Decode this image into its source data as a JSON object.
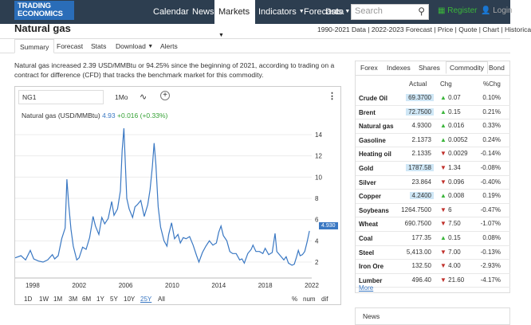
{
  "header": {
    "logo_line1": "TRADING",
    "logo_line2": "ECONOMICS",
    "nav": [
      "Calendar",
      "News",
      "Markets",
      "Indicators",
      "Forecasts",
      "Data"
    ],
    "search_placeholder": "Search",
    "register": "Register",
    "login": "Login"
  },
  "page": {
    "title": "Natural gas",
    "breadcrumbs": "1990-2021 Data | 2022-2023 Forecast | Price | Quote | Chart | Historica",
    "tabs": [
      "Summary",
      "Forecast",
      "Stats",
      "Download",
      "Alerts"
    ],
    "description": "Natural gas increased 2.39 USD/MMBtu or 94.25% since the beginning of 2021, according to trading on a contract for difference (CFD) that tracks the benchmark market for this commodity."
  },
  "chart_controls": {
    "symbol": "NG1",
    "range_selected": "1Mo",
    "series_label": "Natural gas (USD/MMBtu)",
    "series_value": "4.93",
    "series_change": "+0.016 (+0.33%)",
    "last_badge": "4.930",
    "ranges": [
      "1D",
      "1W",
      "1M",
      "3M",
      "6M",
      "1Y",
      "5Y",
      "10Y",
      "25Y",
      "All"
    ],
    "selected_range": "25Y",
    "right_options": [
      "%",
      "num",
      "dif"
    ]
  },
  "chart_data": {
    "type": "line",
    "series_name": "Natural gas (USD/MMBtu)",
    "x_tick_labels": [
      "1998",
      "2002",
      "2006",
      "2010",
      "2014",
      "2018",
      "2022"
    ],
    "y_tick_labels": [
      "2",
      "4",
      "6",
      "8",
      "10",
      "12",
      "14"
    ],
    "ylim": [
      0.5,
      15.5
    ],
    "xlim": [
      1996.5,
      2022
    ],
    "points": [
      [
        1996.5,
        2.4
      ],
      [
        1997,
        2.6
      ],
      [
        1997.4,
        2.2
      ],
      [
        1997.8,
        3.1
      ],
      [
        1998.1,
        2.3
      ],
      [
        1998.5,
        2.1
      ],
      [
        1998.9,
        2.0
      ],
      [
        1999.3,
        2.2
      ],
      [
        1999.7,
        2.7
      ],
      [
        1999.9,
        2.3
      ],
      [
        2000.2,
        2.6
      ],
      [
        2000.5,
        4.2
      ],
      [
        2000.8,
        5.2
      ],
      [
        2000.95,
        9.8
      ],
      [
        2001.1,
        7.5
      ],
      [
        2001.3,
        5.1
      ],
      [
        2001.5,
        3.5
      ],
      [
        2001.8,
        2.2
      ],
      [
        2002.0,
        2.4
      ],
      [
        2002.3,
        3.4
      ],
      [
        2002.6,
        3.2
      ],
      [
        2002.9,
        4.3
      ],
      [
        2003.1,
        5.6
      ],
      [
        2003.2,
        6.3
      ],
      [
        2003.4,
        5.4
      ],
      [
        2003.7,
        4.6
      ],
      [
        2003.95,
        6.2
      ],
      [
        2004.2,
        5.6
      ],
      [
        2004.5,
        6.1
      ],
      [
        2004.8,
        7.7
      ],
      [
        2005.0,
        6.4
      ],
      [
        2005.3,
        7.0
      ],
      [
        2005.55,
        8.7
      ],
      [
        2005.7,
        12.5
      ],
      [
        2005.85,
        14.6
      ],
      [
        2005.95,
        11.8
      ],
      [
        2006.1,
        8.0
      ],
      [
        2006.3,
        7.0
      ],
      [
        2006.6,
        6.2
      ],
      [
        2006.8,
        7.2
      ],
      [
        2007.0,
        7.4
      ],
      [
        2007.3,
        7.8
      ],
      [
        2007.6,
        6.3
      ],
      [
        2007.9,
        7.4
      ],
      [
        2008.1,
        8.8
      ],
      [
        2008.3,
        11.0
      ],
      [
        2008.45,
        13.2
      ],
      [
        2008.6,
        11.2
      ],
      [
        2008.8,
        7.2
      ],
      [
        2009.0,
        5.3
      ],
      [
        2009.3,
        4.0
      ],
      [
        2009.55,
        3.5
      ],
      [
        2009.7,
        4.6
      ],
      [
        2009.95,
        5.7
      ],
      [
        2010.2,
        4.2
      ],
      [
        2010.5,
        4.6
      ],
      [
        2010.7,
        3.8
      ],
      [
        2010.95,
        4.3
      ],
      [
        2011.2,
        4.2
      ],
      [
        2011.5,
        4.4
      ],
      [
        2011.8,
        3.6
      ],
      [
        2012.1,
        2.6
      ],
      [
        2012.3,
        2.0
      ],
      [
        2012.6,
        2.9
      ],
      [
        2012.9,
        3.5
      ],
      [
        2013.2,
        4.0
      ],
      [
        2013.5,
        3.6
      ],
      [
        2013.8,
        3.8
      ],
      [
        2014.0,
        4.8
      ],
      [
        2014.2,
        5.4
      ],
      [
        2014.4,
        4.5
      ],
      [
        2014.7,
        4.0
      ],
      [
        2014.95,
        3.0
      ],
      [
        2015.2,
        2.8
      ],
      [
        2015.5,
        2.8
      ],
      [
        2015.8,
        2.2
      ],
      [
        2016.0,
        2.3
      ],
      [
        2016.2,
        1.9
      ],
      [
        2016.5,
        2.8
      ],
      [
        2016.8,
        3.2
      ],
      [
        2016.95,
        3.6
      ],
      [
        2017.2,
        3.0
      ],
      [
        2017.5,
        3.0
      ],
      [
        2017.8,
        2.8
      ],
      [
        2018.0,
        3.3
      ],
      [
        2018.3,
        2.7
      ],
      [
        2018.6,
        2.9
      ],
      [
        2018.85,
        4.7
      ],
      [
        2019.0,
        3.0
      ],
      [
        2019.3,
        2.6
      ],
      [
        2019.6,
        2.2
      ],
      [
        2019.8,
        2.5
      ],
      [
        2020.0,
        1.9
      ],
      [
        2020.3,
        1.7
      ],
      [
        2020.5,
        1.8
      ],
      [
        2020.7,
        2.5
      ],
      [
        2020.85,
        3.1
      ],
      [
        2021.0,
        2.6
      ],
      [
        2021.2,
        2.7
      ],
      [
        2021.4,
        3.0
      ],
      [
        2021.6,
        3.9
      ],
      [
        2021.8,
        4.93
      ]
    ]
  },
  "market_panel": {
    "tabs": [
      "Forex",
      "Indexes",
      "Shares",
      "Commodity",
      "Bond"
    ],
    "active_tab": "Commodity",
    "col_actual": "Actual",
    "col_chg": "Chg",
    "col_pchg": "%Chg",
    "rows": [
      {
        "name": "Crude Oil",
        "actual": "69.3700",
        "chg": "0.07",
        "pchg": "0.10%",
        "dir": "up",
        "hl": true
      },
      {
        "name": "Brent",
        "actual": "72.7500",
        "chg": "0.15",
        "pchg": "0.21%",
        "dir": "up",
        "hl": true
      },
      {
        "name": "Natural gas",
        "actual": "4.9300",
        "chg": "0.016",
        "pchg": "0.33%",
        "dir": "up",
        "hl": false
      },
      {
        "name": "Gasoline",
        "actual": "2.1373",
        "chg": "0.0052",
        "pchg": "0.24%",
        "dir": "up",
        "hl": false
      },
      {
        "name": "Heating oil",
        "actual": "2.1335",
        "chg": "0.0029",
        "pchg": "-0.14%",
        "dir": "down",
        "hl": false
      },
      {
        "name": "Gold",
        "actual": "1787.58",
        "chg": "1.34",
        "pchg": "-0.08%",
        "dir": "down",
        "hl": true
      },
      {
        "name": "Silver",
        "actual": "23.864",
        "chg": "0.096",
        "pchg": "-0.40%",
        "dir": "down",
        "hl": false
      },
      {
        "name": "Copper",
        "actual": "4.2400",
        "chg": "0.008",
        "pchg": "0.19%",
        "dir": "up",
        "hl": true
      },
      {
        "name": "Soybeans",
        "actual": "1264.7500",
        "chg": "6",
        "pchg": "-0.47%",
        "dir": "down",
        "hl": false
      },
      {
        "name": "Wheat",
        "actual": "690.7500",
        "chg": "7.50",
        "pchg": "-1.07%",
        "dir": "down",
        "hl": false
      },
      {
        "name": "Coal",
        "actual": "177.35",
        "chg": "0.15",
        "pchg": "0.08%",
        "dir": "up",
        "hl": false
      },
      {
        "name": "Steel",
        "actual": "5,413.00",
        "chg": "7.00",
        "pchg": "-0.13%",
        "dir": "down",
        "hl": false
      },
      {
        "name": "Iron Ore",
        "actual": "132.50",
        "chg": "4.00",
        "pchg": "-2.93%",
        "dir": "down",
        "hl": false
      },
      {
        "name": "Lumber",
        "actual": "496.40",
        "chg": "21.60",
        "pchg": "-4.17%",
        "dir": "down",
        "hl": false
      }
    ],
    "more": "More",
    "news": "News"
  },
  "colors": {
    "brand": "#2d3e50",
    "accent": "#3a78c3",
    "up": "#3bb53b",
    "down": "#c0302b"
  }
}
